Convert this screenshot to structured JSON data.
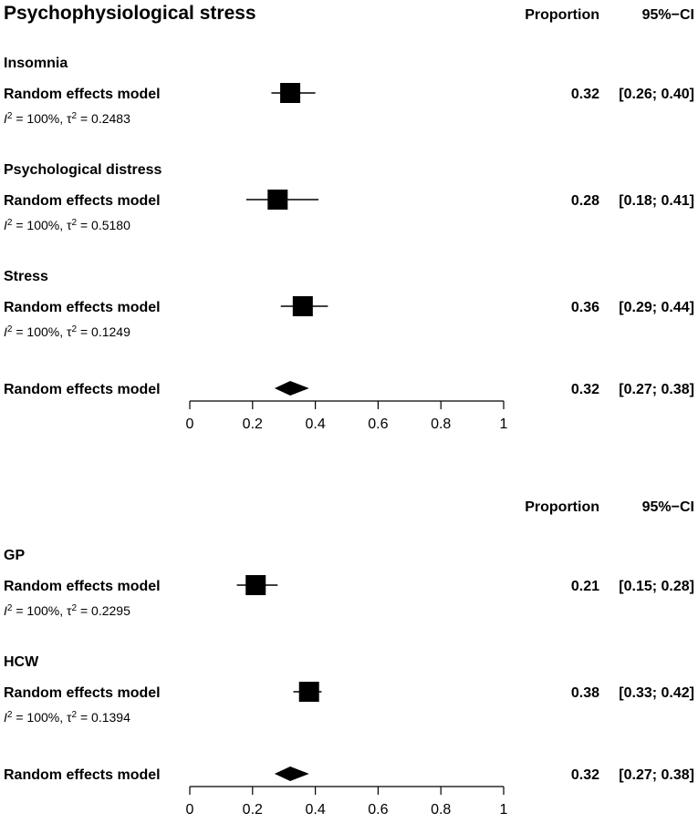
{
  "chart_data": {
    "type": "forest",
    "title": "Psychophysiological stress",
    "column_headers": {
      "estimate": "Proportion",
      "ci": "95%−CI"
    },
    "x_ticks": [
      "0",
      "0.2",
      "0.4",
      "0.6",
      "0.8",
      "1"
    ],
    "xlim": [
      0,
      1
    ],
    "model_label": "Random effects model",
    "panels": [
      {
        "show_title": true,
        "groups": [
          {
            "name": "Insomnia",
            "estimate": 0.32,
            "lower": 0.26,
            "upper": 0.4,
            "estimate_text": "0.32",
            "ci_text": "[0.26; 0.40]",
            "het_prefix": " = 100%, ",
            "het_value": " = 0.2483",
            "weight": 1.0
          },
          {
            "name": "Psychological distress",
            "estimate": 0.28,
            "lower": 0.18,
            "upper": 0.41,
            "estimate_text": "0.28",
            "ci_text": "[0.18; 0.41]",
            "het_prefix": " = 100%, ",
            "het_value": " = 0.5180",
            "weight": 1.0
          },
          {
            "name": "Stress",
            "estimate": 0.36,
            "lower": 0.29,
            "upper": 0.44,
            "estimate_text": "0.36",
            "ci_text": "[0.29; 0.44]",
            "het_prefix": " = 100%, ",
            "het_value": " = 0.1249",
            "weight": 1.0
          }
        ],
        "overall": {
          "estimate": 0.32,
          "lower": 0.27,
          "upper": 0.38,
          "estimate_text": "0.32",
          "ci_text": "[0.27; 0.38]"
        }
      },
      {
        "show_title": false,
        "groups": [
          {
            "name": "GP",
            "estimate": 0.21,
            "lower": 0.15,
            "upper": 0.28,
            "estimate_text": "0.21",
            "ci_text": "[0.15; 0.28]",
            "het_prefix": " = 100%, ",
            "het_value": " = 0.2295",
            "weight": 1.0
          },
          {
            "name": "HCW",
            "estimate": 0.38,
            "lower": 0.33,
            "upper": 0.42,
            "estimate_text": "0.38",
            "ci_text": "[0.33; 0.42]",
            "het_prefix": " = 100%, ",
            "het_value": " = 0.1394",
            "weight": 1.0
          }
        ],
        "overall": {
          "estimate": 0.32,
          "lower": 0.27,
          "upper": 0.38,
          "estimate_text": "0.32",
          "ci_text": "[0.27; 0.38]"
        }
      }
    ]
  }
}
